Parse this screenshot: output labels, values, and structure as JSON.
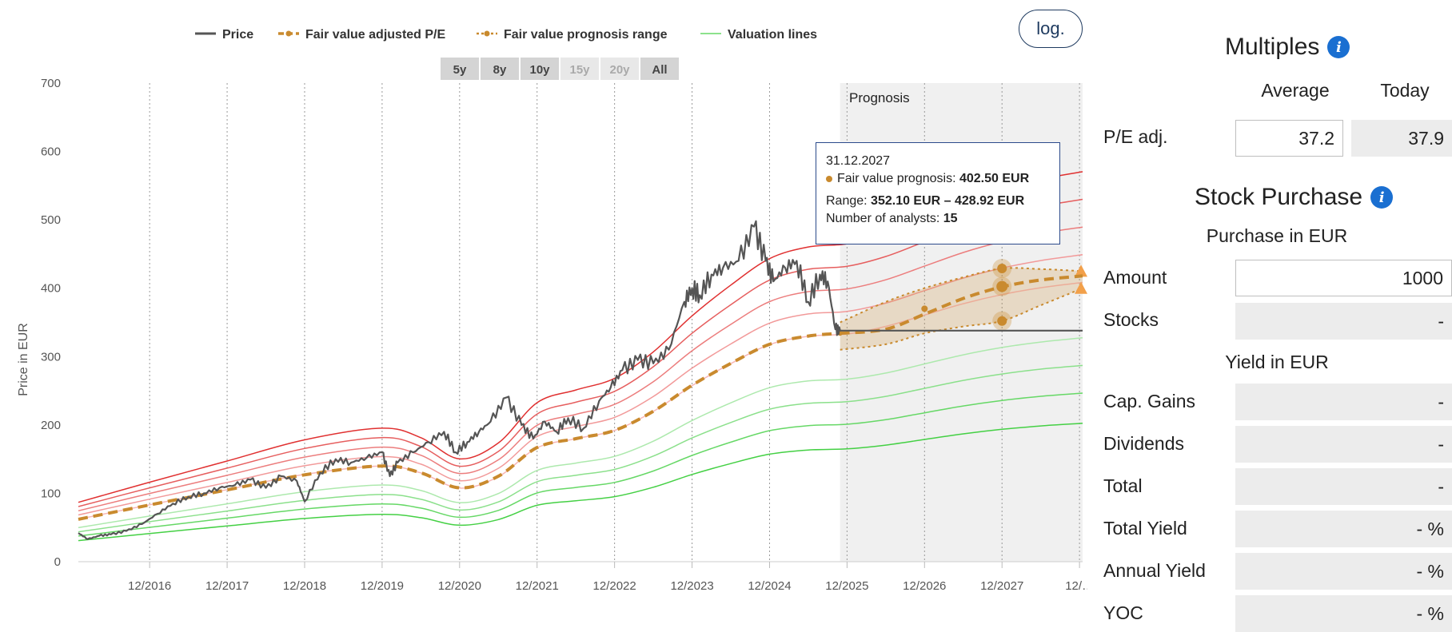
{
  "legend": {
    "price": "Price",
    "fair_value": "Fair value adjusted P/E",
    "prognosis_range": "Fair value prognosis range",
    "valuation_lines": "Valuation lines"
  },
  "range_buttons": [
    {
      "label": "5y",
      "enabled": true,
      "active": false
    },
    {
      "label": "8y",
      "enabled": true,
      "active": false
    },
    {
      "label": "10y",
      "enabled": true,
      "active": false
    },
    {
      "label": "15y",
      "enabled": false,
      "active": false
    },
    {
      "label": "20y",
      "enabled": false,
      "active": false
    },
    {
      "label": "All",
      "enabled": true,
      "active": true
    }
  ],
  "log_button": "log.",
  "prognosis_label": "Prognosis",
  "tooltip": {
    "date": "31.12.2027",
    "fv_label": "Fair value prognosis:",
    "fv_value": "402.50 EUR",
    "range_label": "Range:",
    "range_value": "352.10 EUR – 428.92 EUR",
    "analysts_label": "Number of analysts:",
    "analysts_value": "15"
  },
  "colors": {
    "price": "#555555",
    "fair_value": "#c98a2e",
    "valuation_green": "#33cc33",
    "valuation_red": "#e03030",
    "prognosis_bg": "#f0f0f0"
  },
  "chart_data": {
    "type": "line",
    "ylabel": "Price in EUR",
    "ylim": [
      0,
      700
    ],
    "yticks": [
      0,
      100,
      200,
      300,
      400,
      500,
      600,
      700
    ],
    "xlim": [
      2015.08,
      2028.04
    ],
    "xticks": [
      {
        "x": 2016.0,
        "label": "12/2016"
      },
      {
        "x": 2017.0,
        "label": "12/2017"
      },
      {
        "x": 2018.0,
        "label": "12/2018"
      },
      {
        "x": 2019.0,
        "label": "12/2019"
      },
      {
        "x": 2020.0,
        "label": "12/2020"
      },
      {
        "x": 2021.0,
        "label": "12/2021"
      },
      {
        "x": 2022.0,
        "label": "12/2022"
      },
      {
        "x": 2023.0,
        "label": "12/2023"
      },
      {
        "x": 2024.0,
        "label": "12/2024"
      },
      {
        "x": 2025.0,
        "label": "12/2025"
      },
      {
        "x": 2026.0,
        "label": "12/2026"
      },
      {
        "x": 2027.0,
        "label": "12/2027"
      },
      {
        "x": 2028.0,
        "label": "12/…"
      }
    ],
    "prognosis_start": 2024.91,
    "fair_value": {
      "x": [
        2015.08,
        2016.0,
        2017.0,
        2018.0,
        2019.0,
        2019.5,
        2020.0,
        2020.5,
        2021.0,
        2021.5,
        2022.0,
        2022.5,
        2023.0,
        2023.5,
        2024.0,
        2024.5,
        2024.91
      ],
      "y": [
        62,
        83,
        105,
        127,
        140,
        130,
        108,
        125,
        167,
        180,
        192,
        220,
        258,
        290,
        318,
        330,
        334
      ]
    },
    "fair_value_prognosis": {
      "x": [
        2024.91,
        2025.5,
        2026.0,
        2026.5,
        2027.0,
        2027.5,
        2028.04
      ],
      "y": [
        334,
        340,
        362,
        385,
        402,
        412,
        418
      ],
      "markers": [
        {
          "x": 2026.0,
          "y": 370
        },
        {
          "x": 2027.0,
          "y": 402.5
        }
      ]
    },
    "prognosis_range": {
      "x": [
        2024.91,
        2025.5,
        2026.0,
        2026.5,
        2027.0,
        2027.5,
        2028.04
      ],
      "upper": [
        350,
        380,
        400,
        416,
        428.92,
        428,
        425
      ],
      "lower": [
        310,
        318,
        334,
        344,
        352.1,
        375,
        400
      ]
    },
    "valuation_lines": {
      "x": [
        2015.08,
        2016.0,
        2017.0,
        2018.0,
        2019.0,
        2019.5,
        2020.0,
        2020.5,
        2021.0,
        2021.5,
        2022.0,
        2022.5,
        2023.0,
        2023.5,
        2024.0,
        2024.5,
        2025.0,
        2025.5,
        2026.0,
        2026.5,
        2027.0,
        2027.5,
        2028.04
      ],
      "multipliers": [
        0.55,
        0.67,
        0.78,
        0.89,
        1.11,
        1.22,
        1.33,
        1.44,
        1.55
      ],
      "base": [
        56,
        75,
        95,
        115,
        126,
        117,
        97,
        112,
        150,
        162,
        173,
        198,
        232,
        261,
        286,
        297,
        300,
        310,
        325,
        340,
        352,
        361,
        368
      ]
    },
    "price": {
      "x": [
        2015.08,
        2015.2,
        2015.35,
        2015.5,
        2015.7,
        2015.9,
        2016.1,
        2016.3,
        2016.5,
        2016.7,
        2016.9,
        2017.1,
        2017.3,
        2017.5,
        2017.7,
        2017.9,
        2018.0,
        2018.2,
        2018.4,
        2018.6,
        2018.8,
        2019.0,
        2019.1,
        2019.2,
        2019.4,
        2019.6,
        2019.8,
        2019.95,
        2020.1,
        2020.25,
        2020.4,
        2020.6,
        2020.8,
        2020.95,
        2021.1,
        2021.25,
        2021.4,
        2021.6,
        2021.8,
        2021.95,
        2022.1,
        2022.3,
        2022.5,
        2022.7,
        2022.9,
        2023.0,
        2023.1,
        2023.25,
        2023.4,
        2023.6,
        2023.8,
        2023.95,
        2024.05,
        2024.2,
        2024.35,
        2024.5,
        2024.65,
        2024.75,
        2024.85,
        2024.91,
        2028.04
      ],
      "y": [
        42,
        33,
        38,
        40,
        45,
        55,
        70,
        85,
        95,
        100,
        108,
        112,
        120,
        108,
        125,
        118,
        88,
        130,
        150,
        145,
        152,
        160,
        125,
        145,
        160,
        175,
        190,
        160,
        175,
        190,
        205,
        240,
        200,
        180,
        205,
        190,
        210,
        195,
        235,
        255,
        280,
        295,
        290,
        310,
        380,
        400,
        390,
        420,
        430,
        440,
        490,
        440,
        410,
        430,
        440,
        380,
        420,
        410,
        340,
        338,
        338
      ]
    }
  },
  "side": {
    "multiples_title": "Multiples",
    "col_average": "Average",
    "col_today": "Today",
    "pe_label": "P/E adj.",
    "pe_average": "37.2",
    "pe_today": "37.9",
    "purchase_title": "Stock Purchase",
    "purchase_sub": "Purchase in EUR",
    "amount_label": "Amount",
    "amount_value": "1000",
    "stocks_label": "Stocks",
    "stocks_value": "-",
    "yield_sub": "Yield in EUR",
    "rows": [
      {
        "label": "Cap. Gains",
        "value": "-"
      },
      {
        "label": "Dividends",
        "value": "-"
      },
      {
        "label": "Total",
        "value": "-"
      },
      {
        "label": "Total Yield",
        "value": "- %"
      },
      {
        "label": "Annual Yield",
        "value": "- %"
      },
      {
        "label": "YOC",
        "value": "- %"
      }
    ]
  }
}
